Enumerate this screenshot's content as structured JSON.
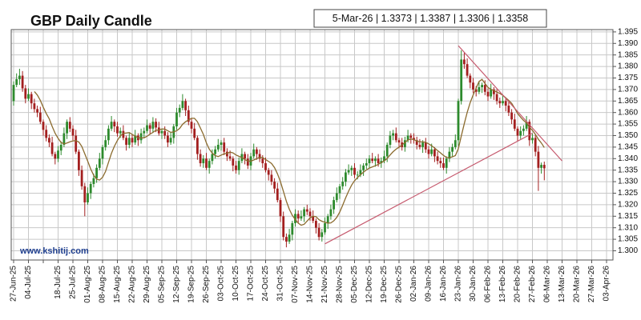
{
  "chart_data": {
    "type": "candlestick",
    "title": "GBP Daily Candle",
    "info": "5-Mar-26 | 1.3373 | 1.3387 | 1.3306 | 1.3358",
    "watermark": "www.kshitij.com",
    "colors": {
      "up": "#2d8a2d",
      "down": "#a31f1f",
      "wick": "#333333"
    },
    "open": [
      1.365,
      1.372,
      1.3745,
      1.376,
      1.3705,
      1.366,
      1.368,
      1.364,
      1.3615,
      1.36,
      1.356,
      1.3525,
      1.349,
      1.347,
      1.342,
      1.34,
      1.3435,
      1.346,
      1.351,
      1.356,
      1.353,
      1.35,
      1.343,
      1.335,
      1.328,
      1.321,
      1.325,
      1.329,
      1.3315,
      1.336,
      1.34,
      1.345,
      1.348,
      1.353,
      1.356,
      1.354,
      1.351,
      1.352,
      1.349,
      1.346,
      1.349,
      1.347,
      1.35,
      1.348,
      1.351,
      1.352,
      1.3545,
      1.353,
      1.356,
      1.3535,
      1.351,
      1.352,
      1.35,
      1.347,
      1.349,
      1.354,
      1.36,
      1.362,
      1.365,
      1.361,
      1.356,
      1.353,
      1.349,
      1.342,
      1.338,
      1.34,
      1.336,
      1.339,
      1.342,
      1.344,
      1.346,
      1.347,
      1.343,
      1.341,
      1.34,
      1.337,
      1.335,
      1.339,
      1.342,
      1.34,
      1.337,
      1.341,
      1.344,
      1.342,
      1.34,
      1.338,
      1.335,
      1.333,
      1.33,
      1.327,
      1.322,
      1.315,
      1.306,
      1.304,
      1.307,
      1.312,
      1.316,
      1.314,
      1.315,
      1.318,
      1.317,
      1.315,
      1.313,
      1.31,
      1.306,
      1.308,
      1.312,
      1.315,
      1.318,
      1.322,
      1.325,
      1.328,
      1.33,
      1.334,
      1.335,
      1.336,
      1.333,
      1.333,
      1.335,
      1.337,
      1.338,
      1.34,
      1.339,
      1.34,
      1.338,
      1.339,
      1.341,
      1.346,
      1.35,
      1.351,
      1.348,
      1.347,
      1.345,
      1.348,
      1.35,
      1.349,
      1.348,
      1.346,
      1.345,
      1.347,
      1.344,
      1.342,
      1.344,
      1.341,
      1.339,
      1.338,
      1.336,
      1.34,
      1.343,
      1.345,
      1.348,
      1.365,
      1.383,
      1.381,
      1.376,
      1.373,
      1.37,
      1.369,
      1.371,
      1.372,
      1.369,
      1.367,
      1.37,
      1.368,
      1.365,
      1.364,
      1.365,
      1.363,
      1.36,
      1.357,
      1.353,
      1.35,
      1.352,
      1.353,
      1.356,
      1.348,
      1.349,
      1.343,
      1.336,
      1.3373
    ],
    "high": [
      1.3735,
      1.377,
      1.379,
      1.378,
      1.372,
      1.3705,
      1.369,
      1.366,
      1.363,
      1.3625,
      1.357,
      1.3545,
      1.3505,
      1.3495,
      1.343,
      1.3455,
      1.3475,
      1.3535,
      1.357,
      1.358,
      1.3545,
      1.3525,
      1.344,
      1.337,
      1.3295,
      1.3275,
      1.33,
      1.3335,
      1.3375,
      1.3425,
      1.346,
      1.35,
      1.3545,
      1.3585,
      1.357,
      1.356,
      1.3535,
      1.3545,
      1.35,
      1.351,
      1.3505,
      1.3525,
      1.351,
      1.353,
      1.3535,
      1.357,
      1.3555,
      1.358,
      1.3575,
      1.356,
      1.353,
      1.354,
      1.3515,
      1.3515,
      1.355,
      1.362,
      1.3635,
      1.368,
      1.366,
      1.363,
      1.3575,
      1.3555,
      1.35,
      1.344,
      1.3415,
      1.3425,
      1.34,
      1.344,
      1.3455,
      1.3485,
      1.348,
      1.349,
      1.3445,
      1.3435,
      1.341,
      1.339,
      1.3405,
      1.3445,
      1.343,
      1.342,
      1.3425,
      1.3465,
      1.345,
      1.344,
      1.3415,
      1.3405,
      1.336,
      1.335,
      1.3315,
      1.3295,
      1.323,
      1.317,
      1.3075,
      1.3095,
      1.313,
      1.318,
      1.3175,
      1.3175,
      1.319,
      1.32,
      1.3185,
      1.3175,
      1.314,
      1.312,
      1.3095,
      1.3145,
      1.316,
      1.32,
      1.3235,
      1.3275,
      1.329,
      1.332,
      1.3355,
      1.3375,
      1.337,
      1.338,
      1.3345,
      1.3375,
      1.338,
      1.34,
      1.3415,
      1.3425,
      1.341,
      1.342,
      1.3405,
      1.3435,
      1.347,
      1.352,
      1.3525,
      1.3535,
      1.349,
      1.349,
      1.3495,
      1.3525,
      1.351,
      1.351,
      1.3495,
      1.3485,
      1.348,
      1.349,
      1.3455,
      1.3465,
      1.345,
      1.343,
      1.3405,
      1.3405,
      1.341,
      1.345,
      1.3465,
      1.3505,
      1.366,
      1.387,
      1.386,
      1.3835,
      1.377,
      1.375,
      1.3715,
      1.3735,
      1.373,
      1.374,
      1.3705,
      1.3725,
      1.371,
      1.37,
      1.3665,
      1.3675,
      1.366,
      1.365,
      1.3615,
      1.3595,
      1.354,
      1.354,
      1.3545,
      1.3585,
      1.357,
      1.351,
      1.3505,
      1.3455,
      1.3383,
      1.3387
    ],
    "low": [
      1.363,
      1.371,
      1.372,
      1.369,
      1.364,
      1.365,
      1.3615,
      1.36,
      1.358,
      1.355,
      1.35,
      1.3475,
      1.345,
      1.341,
      1.3375,
      1.3385,
      1.3415,
      1.345,
      1.3485,
      1.3515,
      1.348,
      1.342,
      1.3325,
      1.3265,
      1.315,
      1.32,
      1.3225,
      1.3275,
      1.3295,
      1.335,
      1.3375,
      1.3435,
      1.346,
      1.352,
      1.3515,
      1.3495,
      1.349,
      1.348,
      1.3435,
      1.3445,
      1.345,
      1.346,
      1.3455,
      1.3465,
      1.349,
      1.351,
      1.3505,
      1.3515,
      1.3515,
      1.35,
      1.3485,
      1.3485,
      1.345,
      1.346,
      1.3465,
      1.3525,
      1.358,
      1.361,
      1.3585,
      1.3545,
      1.351,
      1.348,
      1.3395,
      1.3365,
      1.336,
      1.335,
      1.3335,
      1.3375,
      1.34,
      1.343,
      1.3435,
      1.3415,
      1.339,
      1.339,
      1.3345,
      1.3335,
      1.333,
      1.338,
      1.3375,
      1.3355,
      1.335,
      1.34,
      1.3395,
      1.3385,
      1.336,
      1.334,
      1.3305,
      1.3285,
      1.325,
      1.321,
      1.3125,
      1.3045,
      1.3015,
      1.303,
      1.3045,
      1.3105,
      1.312,
      1.313,
      1.3125,
      1.3155,
      1.313,
      1.312,
      1.3075,
      1.3045,
      1.304,
      1.307,
      1.3095,
      1.3135,
      1.316,
      1.321,
      1.3225,
      1.3265,
      1.328,
      1.333,
      1.3325,
      1.3315,
      1.331,
      1.332,
      1.3325,
      1.3355,
      1.336,
      1.338,
      1.3365,
      1.3365,
      1.336,
      1.338,
      1.3385,
      1.3445,
      1.348,
      1.347,
      1.3445,
      1.3435,
      1.343,
      1.347,
      1.3465,
      1.3465,
      1.344,
      1.344,
      1.3425,
      1.3425,
      1.34,
      1.341,
      1.3385,
      1.3375,
      1.336,
      1.335,
      1.3335,
      1.3385,
      1.341,
      1.344,
      1.3455,
      1.3635,
      1.379,
      1.375,
      1.3705,
      1.3685,
      1.367,
      1.368,
      1.3685,
      1.3675,
      1.365,
      1.366,
      1.3655,
      1.3635,
      1.362,
      1.363,
      1.3605,
      1.3585,
      1.355,
      1.352,
      1.3475,
      1.3485,
      1.35,
      1.352,
      1.3455,
      1.3465,
      1.341,
      1.326,
      1.3335,
      1.3306
    ],
    "close": [
      1.372,
      1.3745,
      1.376,
      1.3705,
      1.366,
      1.368,
      1.364,
      1.3615,
      1.36,
      1.356,
      1.3525,
      1.349,
      1.347,
      1.342,
      1.34,
      1.3435,
      1.346,
      1.351,
      1.356,
      1.353,
      1.35,
      1.343,
      1.335,
      1.328,
      1.321,
      1.325,
      1.329,
      1.3315,
      1.336,
      1.34,
      1.345,
      1.348,
      1.353,
      1.356,
      1.354,
      1.351,
      1.352,
      1.349,
      1.346,
      1.349,
      1.347,
      1.35,
      1.348,
      1.351,
      1.352,
      1.3545,
      1.353,
      1.356,
      1.3535,
      1.351,
      1.352,
      1.35,
      1.347,
      1.349,
      1.354,
      1.36,
      1.362,
      1.365,
      1.361,
      1.356,
      1.353,
      1.349,
      1.342,
      1.338,
      1.34,
      1.336,
      1.339,
      1.342,
      1.344,
      1.346,
      1.347,
      1.343,
      1.341,
      1.34,
      1.337,
      1.335,
      1.339,
      1.342,
      1.34,
      1.337,
      1.341,
      1.344,
      1.342,
      1.34,
      1.338,
      1.335,
      1.333,
      1.33,
      1.327,
      1.322,
      1.315,
      1.306,
      1.304,
      1.307,
      1.312,
      1.316,
      1.314,
      1.315,
      1.318,
      1.317,
      1.315,
      1.313,
      1.31,
      1.306,
      1.308,
      1.312,
      1.315,
      1.318,
      1.322,
      1.325,
      1.328,
      1.33,
      1.334,
      1.335,
      1.336,
      1.333,
      1.333,
      1.335,
      1.337,
      1.338,
      1.34,
      1.339,
      1.34,
      1.338,
      1.339,
      1.341,
      1.346,
      1.35,
      1.351,
      1.348,
      1.347,
      1.345,
      1.348,
      1.35,
      1.349,
      1.348,
      1.346,
      1.345,
      1.347,
      1.344,
      1.342,
      1.344,
      1.341,
      1.339,
      1.338,
      1.336,
      1.34,
      1.343,
      1.345,
      1.348,
      1.365,
      1.383,
      1.381,
      1.376,
      1.373,
      1.37,
      1.369,
      1.371,
      1.372,
      1.369,
      1.367,
      1.37,
      1.368,
      1.365,
      1.364,
      1.365,
      1.363,
      1.36,
      1.357,
      1.353,
      1.35,
      1.352,
      1.353,
      1.356,
      1.348,
      1.349,
      1.343,
      1.336,
      1.3373,
      1.3358
    ],
    "ma": {
      "color": "#8b6b2e",
      "values": [
        null,
        null,
        null,
        null,
        null,
        null,
        null,
        1.3691,
        1.3676,
        1.3653,
        1.3623,
        1.3596,
        1.3573,
        1.354,
        1.351,
        1.3488,
        1.347,
        1.3464,
        1.3468,
        1.3473,
        1.3477,
        1.3478,
        1.3472,
        1.3453,
        1.3421,
        1.3389,
        1.3355,
        1.3328,
        1.3311,
        1.3307,
        1.3319,
        1.3344,
        1.3384,
        1.3423,
        1.3454,
        1.3479,
        1.3499,
        1.351,
        1.3511,
        1.3513,
        1.3505,
        1.3498,
        1.349,
        1.349,
        1.349,
        1.3497,
        1.3506,
        1.3514,
        1.3523,
        1.3524,
        1.3529,
        1.3528,
        1.3521,
        1.3514,
        1.3516,
        1.3521,
        1.3531,
        1.3549,
        1.356,
        1.3568,
        1.3575,
        1.3575,
        1.356,
        1.3533,
        1.3505,
        1.3469,
        1.3441,
        1.3424,
        1.3413,
        1.3409,
        1.3415,
        1.3421,
        1.3423,
        1.3428,
        1.3425,
        1.3416,
        1.341,
        1.3405,
        1.3396,
        1.3389,
        1.3389,
        1.3394,
        1.34,
        1.3406,
        1.3405,
        1.3396,
        1.3388,
        1.3379,
        1.3361,
        1.3334,
        1.33,
        1.3258,
        1.3215,
        1.318,
        1.3154,
        1.3136,
        1.312,
        1.3111,
        1.3115,
        1.3129,
        1.3143,
        1.315,
        1.3148,
        1.3135,
        1.3128,
        1.3124,
        1.312,
        1.3121,
        1.313,
        1.3145,
        1.3168,
        1.3198,
        1.323,
        1.3259,
        1.3285,
        1.3304,
        1.3318,
        1.333,
        1.3341,
        1.3351,
        1.3359,
        1.3364,
        1.3369,
        1.3375,
        1.3383,
        1.339,
        1.3401,
        1.3416,
        1.343,
        1.3441,
        1.345,
        1.3459,
        1.347,
        1.3481,
        1.3485,
        1.3483,
        1.3476,
        1.3473,
        1.3473,
        1.3471,
        1.3464,
        1.3456,
        1.3446,
        1.3435,
        1.3425,
        1.3414,
        1.3405,
        1.3404,
        1.3408,
        1.3413,
        1.3443,
        1.3498,
        1.3551,
        1.3601,
        1.3643,
        1.3676,
        1.3706,
        1.3735,
        1.3744,
        1.3726,
        1.3709,
        1.3701,
        1.3695,
        1.3689,
        1.3683,
        1.3675,
        1.3664,
        1.3653,
        1.364,
        1.3619,
        1.3596,
        1.358,
        1.3566,
        1.3555,
        1.3536,
        1.3523,
        1.3505,
        1.3484,
        1.3468,
        1.3448
      ]
    },
    "trendlines": [
      {
        "color": "#c65a6e",
        "x": [
          "21-Nov-25",
          "27-Feb-26"
        ],
        "y": [
          1.303,
          1.351
        ]
      },
      {
        "color": "#c65a6e",
        "x": [
          "23-Jan-26",
          "13-Mar-26"
        ],
        "y": [
          1.389,
          1.339
        ]
      }
    ],
    "xticks": [
      "27-Jun-25",
      "04-Jul-25",
      null,
      "18-Jul-25",
      "25-Jul-25",
      "01-Aug-25",
      "08-Aug-25",
      "15-Aug-25",
      "22-Aug-25",
      "29-Aug-25",
      "05-Sep-25",
      "12-Sep-25",
      "19-Sep-25",
      "26-Sep-25",
      "03-Oct-25",
      "10-Oct-25",
      "17-Oct-25",
      "24-Oct-25",
      "31-Oct-25",
      "07-Nov-25",
      "14-Nov-25",
      "21-Nov-25",
      "28-Nov-25",
      "05-Dec-25",
      "12-Dec-25",
      "19-Dec-25",
      "26-Dec-25",
      "02-Jan-26",
      "09-Jan-26",
      "16-Jan-26",
      "23-Jan-26",
      "30-Jan-26",
      "06-Feb-26",
      "13-Feb-26",
      "20-Feb-26",
      "27-Feb-26",
      "06-Mar-26",
      "13-Mar-26",
      "20-Mar-26",
      "27-Mar-26",
      "03-Apr-26"
    ],
    "ylim": [
      1.296,
      1.396
    ],
    "yticks": [
      {
        "value": 1.3,
        "label": "1.300"
      },
      1.305,
      {
        "value": 1.31,
        "label": "1.310"
      },
      1.315,
      {
        "value": 1.32,
        "label": "1.320"
      },
      1.325,
      {
        "value": 1.33,
        "label": "1.330"
      },
      1.335,
      {
        "value": 1.34,
        "label": "1.340"
      },
      1.345,
      {
        "value": 1.35,
        "label": "1.350"
      },
      1.355,
      {
        "value": 1.36,
        "label": "1.360"
      },
      1.365,
      {
        "value": 1.37,
        "label": "1.370"
      },
      1.375,
      {
        "value": 1.38,
        "label": "1.380"
      },
      1.385,
      {
        "value": 1.39,
        "label": "1.390"
      },
      1.395
    ],
    "grid": true
  }
}
